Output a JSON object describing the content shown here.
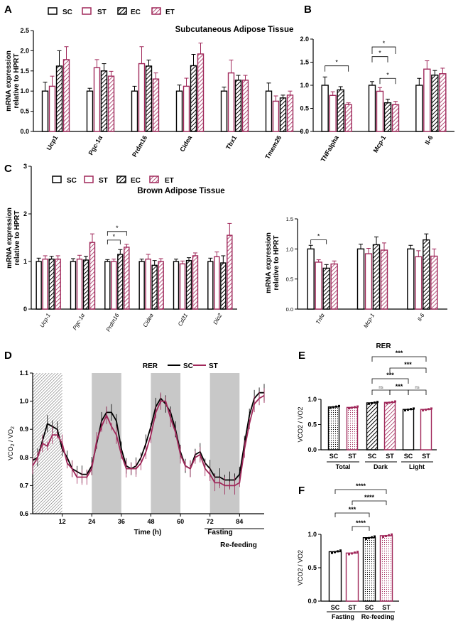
{
  "colors": {
    "SC": "#000000",
    "ST": "#a0285a",
    "grey": "#c8c8c8"
  },
  "legend": {
    "items": [
      "SC",
      "ST",
      "EC",
      "ET"
    ]
  },
  "chart_data": [
    {
      "id": "A",
      "panel_label": "A",
      "type": "bar",
      "title": "Subcutaneous Adipose Tissue",
      "ylabel_lines": [
        "mRNA expression",
        "relative to HPRT"
      ],
      "ylim": [
        0,
        2.5
      ],
      "yticks": [
        "0.0",
        "0.5",
        "1.0",
        "1.5",
        "2.0",
        "2.5"
      ],
      "categories": [
        "Ucp1",
        "Pgc-1α",
        "Prdm16",
        "Cidea",
        "Tbx1",
        "Tmem26"
      ],
      "series": [
        {
          "name": "SC",
          "values": [
            1.0,
            1.0,
            1.0,
            1.0,
            1.0,
            1.0
          ],
          "errors": [
            0.22,
            0.07,
            0.12,
            0.15,
            0.1,
            0.2
          ]
        },
        {
          "name": "ST",
          "values": [
            1.12,
            1.58,
            1.68,
            1.12,
            1.45,
            0.75
          ],
          "errors": [
            0.25,
            0.2,
            0.42,
            0.2,
            0.32,
            0.13
          ]
        },
        {
          "name": "EC",
          "values": [
            1.62,
            1.5,
            1.62,
            1.63,
            1.27,
            0.83
          ],
          "errors": [
            0.38,
            0.18,
            0.15,
            0.28,
            0.12,
            0.07
          ]
        },
        {
          "name": "ET",
          "values": [
            1.78,
            1.37,
            1.3,
            1.92,
            1.27,
            0.9
          ],
          "errors": [
            0.32,
            0.12,
            0.15,
            0.27,
            0.12,
            0.1
          ]
        }
      ]
    },
    {
      "id": "B",
      "panel_label": "B",
      "type": "bar",
      "ylim": [
        0,
        2.0
      ],
      "yticks": [
        "0.0",
        "0.5",
        "1.0",
        "1.5",
        "2.0"
      ],
      "categories": [
        "TNFalpha",
        "Mcp-1",
        "Il-6"
      ],
      "series": [
        {
          "name": "SC",
          "values": [
            1.0,
            1.0,
            1.0
          ],
          "errors": [
            0.18,
            0.08,
            0.15
          ]
        },
        {
          "name": "ST",
          "values": [
            0.78,
            0.87,
            1.35
          ],
          "errors": [
            0.08,
            0.08,
            0.18
          ]
        },
        {
          "name": "EC",
          "values": [
            0.9,
            0.62,
            1.22
          ],
          "errors": [
            0.07,
            0.08,
            0.1
          ]
        },
        {
          "name": "ET",
          "values": [
            0.58,
            0.58,
            1.25
          ],
          "errors": [
            0.04,
            0.07,
            0.12
          ]
        }
      ],
      "annotations": [
        "*",
        "*",
        "*",
        "*"
      ]
    },
    {
      "id": "C1",
      "panel_label": "C",
      "type": "bar",
      "title": "Brown Adipose Tissue",
      "ylabel_lines": [
        "mRNA expression",
        "relative to HPRT"
      ],
      "ylim": [
        0,
        3
      ],
      "yticks": [
        "0",
        "1",
        "2",
        "3"
      ],
      "categories": [
        "Ucp-1",
        "Pgc-1α",
        "Prdm16",
        "Cidea",
        "Cd31",
        "Dio2"
      ],
      "series": [
        {
          "name": "SC",
          "values": [
            1.0,
            1.0,
            1.0,
            1.0,
            1.0,
            1.0
          ],
          "errors": [
            0.07,
            0.06,
            0.04,
            0.05,
            0.05,
            0.07
          ]
        },
        {
          "name": "ST",
          "values": [
            1.05,
            1.05,
            1.0,
            1.05,
            0.95,
            1.1
          ],
          "errors": [
            0.07,
            0.08,
            0.05,
            0.1,
            0.06,
            0.1
          ]
        },
        {
          "name": "EC",
          "values": [
            1.05,
            1.03,
            1.15,
            0.92,
            1.02,
            0.97
          ],
          "errors": [
            0.06,
            0.08,
            0.1,
            0.1,
            0.06,
            0.15
          ]
        },
        {
          "name": "ET",
          "values": [
            1.05,
            1.4,
            1.3,
            1.0,
            1.12,
            1.55
          ],
          "errors": [
            0.07,
            0.18,
            0.06,
            0.06,
            0.06,
            0.25
          ]
        }
      ],
      "annotations": [
        "*",
        "*"
      ]
    },
    {
      "id": "C2",
      "type": "bar",
      "ylabel_lines": [
        "mRNA expression",
        "relative to HPRT"
      ],
      "ylim": [
        0,
        1.5
      ],
      "yticks": [
        "0.0",
        "0.5",
        "1.0",
        "1.5"
      ],
      "categories": [
        "Tnfα",
        "Mcp-1",
        "Il-6"
      ],
      "series": [
        {
          "name": "SC",
          "values": [
            1.0,
            1.0,
            1.0
          ],
          "errors": [
            0.06,
            0.08,
            0.06
          ]
        },
        {
          "name": "ST",
          "values": [
            0.78,
            0.92,
            0.87
          ],
          "errors": [
            0.04,
            0.09,
            0.1
          ]
        },
        {
          "name": "EC",
          "values": [
            0.68,
            1.07,
            1.15
          ],
          "errors": [
            0.06,
            0.13,
            0.1
          ]
        },
        {
          "name": "ET",
          "values": [
            0.75,
            0.98,
            0.88
          ],
          "errors": [
            0.05,
            0.12,
            0.12
          ]
        }
      ],
      "annotations": [
        "*"
      ]
    },
    {
      "id": "D",
      "panel_label": "D",
      "type": "line",
      "title": "RER",
      "ylabel": "VCO2 / VO2",
      "ylabel_main": "VCO",
      "ylabel_sub1": "2",
      "ylabel_mid": " / VO",
      "ylabel_sub2": "2",
      "xlabel": "Time (h)",
      "ylim": [
        0.6,
        1.1
      ],
      "yticks": [
        "0.6",
        "0.7",
        "0.8",
        "0.9",
        "1.0",
        "1.1"
      ],
      "xticks": [
        "12",
        "24",
        "36",
        "48",
        "60",
        "72",
        "84"
      ],
      "xlim": [
        0,
        94
      ],
      "dark_periods": [
        [
          0,
          12
        ],
        [
          24,
          36
        ],
        [
          48,
          60
        ],
        [
          72,
          84
        ]
      ],
      "annotations": [
        "Fasting",
        "Re-feeding"
      ],
      "series": [
        {
          "name": "SC",
          "t": [
            0,
            2,
            4,
            6,
            8,
            10,
            12,
            14,
            16,
            18,
            20,
            22,
            24,
            26,
            28,
            30,
            32,
            34,
            36,
            38,
            40,
            42,
            44,
            46,
            48,
            50,
            52,
            54,
            56,
            58,
            60,
            62,
            64,
            66,
            68,
            70,
            72,
            74,
            76,
            78,
            80,
            82,
            84,
            86,
            88,
            90,
            92,
            94
          ],
          "y": [
            0.79,
            0.8,
            0.86,
            0.92,
            0.91,
            0.9,
            0.83,
            0.8,
            0.76,
            0.75,
            0.74,
            0.74,
            0.77,
            0.85,
            0.93,
            0.96,
            0.96,
            0.93,
            0.83,
            0.77,
            0.76,
            0.77,
            0.8,
            0.85,
            0.91,
            0.98,
            1.01,
            0.99,
            0.96,
            0.9,
            0.82,
            0.77,
            0.76,
            0.81,
            0.82,
            0.78,
            0.76,
            0.73,
            0.73,
            0.72,
            0.72,
            0.72,
            0.74,
            0.85,
            0.95,
            1.01,
            1.03,
            1.03
          ]
        },
        {
          "name": "ST",
          "t": [
            0,
            2,
            4,
            6,
            8,
            10,
            12,
            14,
            16,
            18,
            20,
            22,
            24,
            26,
            28,
            30,
            32,
            34,
            36,
            38,
            40,
            42,
            44,
            46,
            48,
            50,
            52,
            54,
            56,
            58,
            60,
            62,
            64,
            66,
            68,
            70,
            72,
            74,
            76,
            78,
            80,
            82,
            84,
            86,
            88,
            90,
            92,
            94
          ],
          "y": [
            0.77,
            0.8,
            0.85,
            0.84,
            0.88,
            0.88,
            0.85,
            0.78,
            0.76,
            0.73,
            0.73,
            0.73,
            0.76,
            0.86,
            0.91,
            0.95,
            0.91,
            0.88,
            0.81,
            0.76,
            0.76,
            0.76,
            0.78,
            0.82,
            0.88,
            0.96,
            1.0,
            1.0,
            0.94,
            0.89,
            0.81,
            0.77,
            0.76,
            0.8,
            0.81,
            0.76,
            0.74,
            0.71,
            0.71,
            0.7,
            0.7,
            0.7,
            0.71,
            0.83,
            0.92,
            0.99,
            1.01,
            1.02
          ]
        }
      ]
    },
    {
      "id": "E",
      "panel_label": "E",
      "type": "bar",
      "title": "RER",
      "ylabel": "VCO2 / VO2",
      "ylim": [
        0,
        1.0
      ],
      "yticks": [
        "0.0",
        "0.5",
        "1.0"
      ],
      "categories": [
        "SC",
        "ST",
        "SC",
        "ST",
        "SC",
        "ST"
      ],
      "groups": [
        "Total",
        "Dark",
        "Light"
      ],
      "values": [
        0.85,
        0.84,
        0.93,
        0.94,
        0.8,
        0.8
      ],
      "annotations": [
        "***",
        "***",
        "***",
        "***",
        "ns",
        "ns"
      ]
    },
    {
      "id": "F",
      "panel_label": "F",
      "type": "bar",
      "ylabel": "VCO2 / VO2",
      "ylim": [
        0,
        1.0
      ],
      "yticks": [
        "0.0",
        "0.5",
        "1.0"
      ],
      "categories": [
        "SC",
        "ST",
        "SC",
        "ST"
      ],
      "groups": [
        "Fasting",
        "Re-feeding"
      ],
      "values": [
        0.74,
        0.72,
        0.95,
        0.98
      ],
      "annotations": [
        "****",
        "****",
        "***",
        "****"
      ]
    }
  ]
}
